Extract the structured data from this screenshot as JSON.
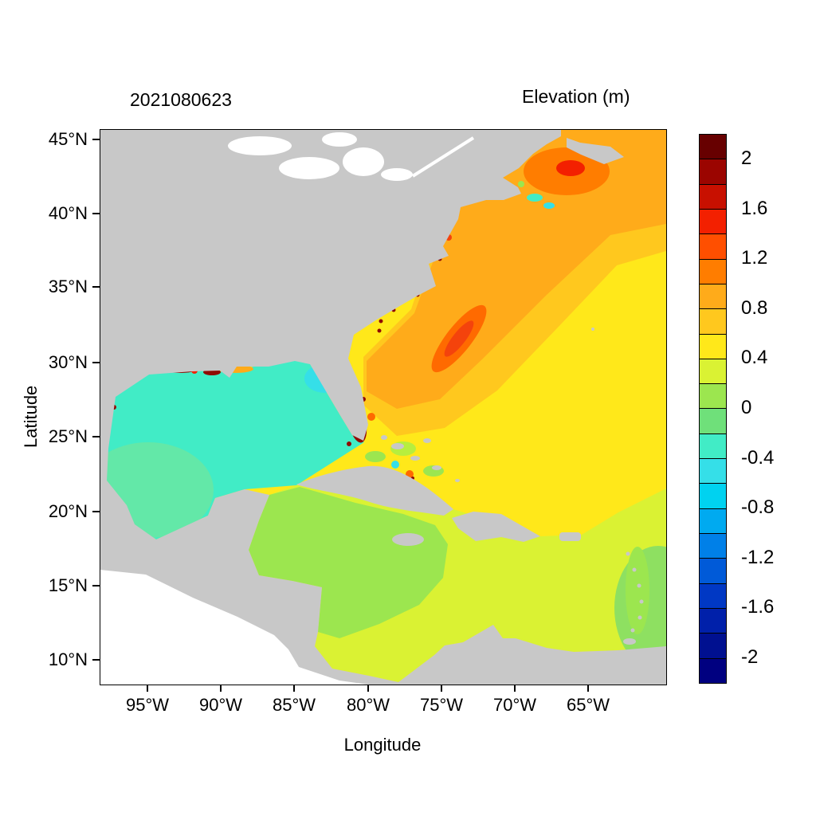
{
  "chart_data": {
    "type": "heatmap",
    "title": "Elevation (m)",
    "timestamp_label": "2021080623",
    "xlabel": "Longitude",
    "ylabel": "Latitude",
    "x_tick_labels": [
      "95°W",
      "90°W",
      "85°W",
      "80°W",
      "75°W",
      "70°W",
      "65°W"
    ],
    "y_tick_labels": [
      "45°N",
      "40°N",
      "35°N",
      "30°N",
      "25°N",
      "20°N",
      "15°N",
      "10°N"
    ],
    "x_range_note": "approx 98.5W to 60W",
    "y_range_note": "approx 8.5N to 45.5N",
    "grid": false,
    "colorbar": {
      "position": "right",
      "tick_labels": [
        "2",
        "1.6",
        "1.2",
        "0.8",
        "0.4",
        "0",
        "-0.4",
        "-0.8",
        "-1.2",
        "-1.6",
        "-2"
      ],
      "value_min": -2.2,
      "value_max": 2.2,
      "step": 0.2,
      "colors_top_to_bottom": [
        "#670000",
        "#9b0500",
        "#c81000",
        "#f32000",
        "#ff4f00",
        "#ff7d00",
        "#ffab1a",
        "#ffc81e",
        "#ffe81a",
        "#daf233",
        "#9ce64f",
        "#6fe07a",
        "#41ecc6",
        "#35dfe8",
        "#00d2f0",
        "#00aaf0",
        "#0080e8",
        "#005ad8",
        "#0038c4",
        "#0020aa",
        "#001090",
        "#000080"
      ]
    },
    "regions": [
      {
        "area": "Gulf of Mexico (open water)",
        "elevation_m": -0.3
      },
      {
        "area": "Bay of Campeche patch",
        "elevation_m": -0.15
      },
      {
        "area": "Northeast Gulf coastal cyan patch",
        "elevation_m": -0.6
      },
      {
        "area": "Louisiana and southwest Florida coastal spots",
        "elevation_m": 2.0
      },
      {
        "area": "Western Caribbean Sea",
        "elevation_m": 0.1
      },
      {
        "area": "Eastern Caribbean and southeast Atlantic",
        "elevation_m": 0.3
      },
      {
        "area": "Central Atlantic (Sargasso region)",
        "elevation_m": 0.5
      },
      {
        "area": "Gulf Stream band off US east coast",
        "elevation_m": 0.9
      },
      {
        "area": "Gulf Stream core off the Carolinas",
        "elevation_m": 1.4
      },
      {
        "area": "Scotian Shelf / Gulf of Maine high",
        "elevation_m": 1.7
      },
      {
        "area": "Land",
        "elevation_m": null,
        "note": "masked (gray)"
      },
      {
        "area": "Pacific corner (lower left)",
        "elevation_m": null,
        "note": "no data (white)"
      }
    ]
  },
  "palette": {
    "land": "#c8c8c8",
    "no_data": "#ffffff",
    "lake": "#ffffff",
    "atlantic_yellow": "#ffe81a",
    "amber_band": "#ffc81e",
    "orange_band": "#ffab1a",
    "orange_core": "#ff7d00",
    "red_core": "#f32000",
    "dark_red": "#8f0b03",
    "southeast_yellow_green": "#daf233",
    "caribbean_green": "#9ce64f",
    "south_green": "#8ee061",
    "gulf_turquoise": "#41ecc6",
    "gulf_green": "#63e8a8",
    "cyan_patch": "#35dfe8",
    "coastal_orange": "#ff6a00",
    "coastal_red": "#f4430c",
    "bahamas_green": "#b7ee3e"
  }
}
